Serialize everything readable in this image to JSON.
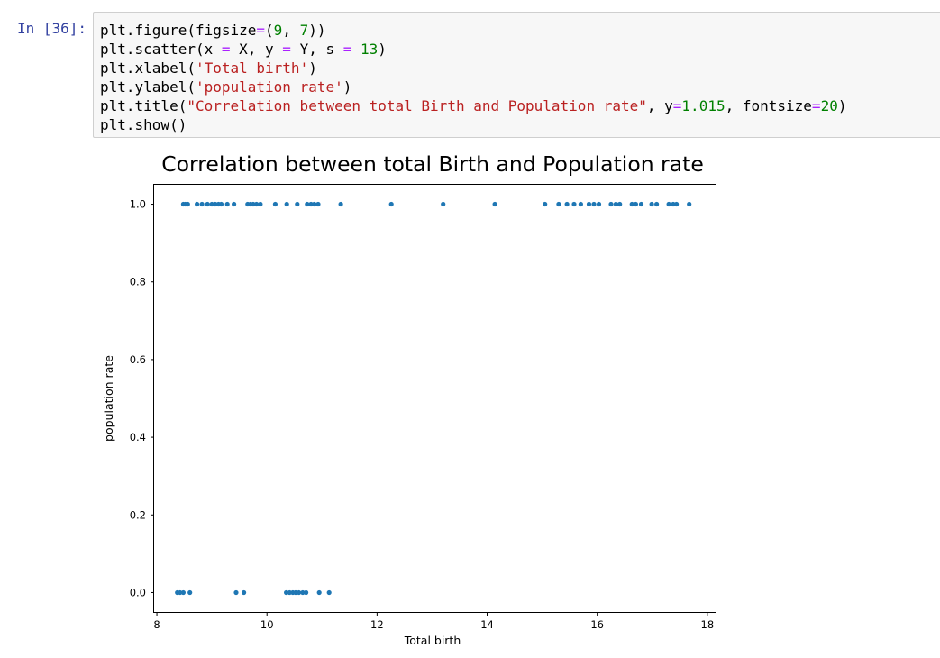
{
  "cell": {
    "prompt": "In [36]:",
    "lines": [
      [
        [
          "plt.figure(figsize",
          "n"
        ],
        [
          "=",
          "o"
        ],
        [
          "(",
          "n"
        ],
        [
          "9",
          "num"
        ],
        [
          ", ",
          "n"
        ],
        [
          "7",
          "num"
        ],
        [
          "))",
          "n"
        ]
      ],
      [
        [
          "plt.scatter(x ",
          "n"
        ],
        [
          "=",
          "o"
        ],
        [
          " X, y ",
          "n"
        ],
        [
          "=",
          "o"
        ],
        [
          " Y, s ",
          "n"
        ],
        [
          "=",
          "o"
        ],
        [
          " ",
          "n"
        ],
        [
          "13",
          "num"
        ],
        [
          ")",
          "n"
        ]
      ],
      [
        [
          "plt.xlabel(",
          "n"
        ],
        [
          "'Total birth'",
          "s"
        ],
        [
          ")",
          "n"
        ]
      ],
      [
        [
          "plt.ylabel(",
          "n"
        ],
        [
          "'population rate'",
          "s"
        ],
        [
          ")",
          "n"
        ]
      ],
      [
        [
          "plt.title(",
          "n"
        ],
        [
          "\"Correlation between total Birth and Population rate\"",
          "s"
        ],
        [
          ", y",
          "n"
        ],
        [
          "=",
          "o"
        ],
        [
          "1.015",
          "num"
        ],
        [
          ", fontsize",
          "n"
        ],
        [
          "=",
          "o"
        ],
        [
          "20",
          "num"
        ],
        [
          ")",
          "n"
        ]
      ],
      [
        [
          "plt.show()",
          "n"
        ]
      ]
    ]
  },
  "chart_data": {
    "type": "scatter",
    "title": "Correlation between total Birth and Population rate",
    "xlabel": "Total birth",
    "ylabel": "population rate",
    "xlim": [
      7.95,
      18.15
    ],
    "ylim": [
      -0.05,
      1.05
    ],
    "xticks": [
      8,
      10,
      12,
      14,
      16,
      18
    ],
    "yticks": [
      0.0,
      0.2,
      0.4,
      0.6,
      0.8,
      1.0
    ],
    "x_tick_labels": [
      "8",
      "10",
      "12",
      "14",
      "16",
      "18"
    ],
    "y_tick_labels": [
      "0.0",
      "0.2",
      "0.4",
      "0.6",
      "0.8",
      "1.0"
    ],
    "grid": false,
    "marker_color": "#1f77b4",
    "series": [
      {
        "points": [
          [
            8.48,
            1
          ],
          [
            8.52,
            1
          ],
          [
            8.56,
            1
          ],
          [
            8.73,
            1
          ],
          [
            8.82,
            1
          ],
          [
            8.92,
            1
          ],
          [
            9.0,
            1
          ],
          [
            9.06,
            1
          ],
          [
            9.12,
            1
          ],
          [
            9.17,
            1
          ],
          [
            9.28,
            1
          ],
          [
            9.4,
            1
          ],
          [
            9.65,
            1
          ],
          [
            9.7,
            1
          ],
          [
            9.75,
            1
          ],
          [
            9.81,
            1
          ],
          [
            9.88,
            1
          ],
          [
            10.15,
            1
          ],
          [
            10.36,
            1
          ],
          [
            10.55,
            1
          ],
          [
            10.73,
            1
          ],
          [
            10.8,
            1
          ],
          [
            10.86,
            1
          ],
          [
            10.93,
            1
          ],
          [
            11.34,
            1
          ],
          [
            12.26,
            1
          ],
          [
            13.2,
            1
          ],
          [
            14.14,
            1
          ],
          [
            15.05,
            1
          ],
          [
            15.3,
            1
          ],
          [
            15.45,
            1
          ],
          [
            15.58,
            1
          ],
          [
            15.7,
            1
          ],
          [
            15.85,
            1
          ],
          [
            15.94,
            1
          ],
          [
            16.03,
            1
          ],
          [
            16.25,
            1
          ],
          [
            16.34,
            1
          ],
          [
            16.41,
            1
          ],
          [
            16.63,
            1
          ],
          [
            16.7,
            1
          ],
          [
            16.8,
            1
          ],
          [
            16.99,
            1
          ],
          [
            17.08,
            1
          ],
          [
            17.3,
            1
          ],
          [
            17.38,
            1
          ],
          [
            17.44,
            1
          ],
          [
            17.67,
            1
          ],
          [
            8.37,
            0
          ],
          [
            8.42,
            0
          ],
          [
            8.48,
            0
          ],
          [
            8.6,
            0
          ],
          [
            9.44,
            0
          ],
          [
            9.58,
            0
          ],
          [
            10.35,
            0
          ],
          [
            10.41,
            0
          ],
          [
            10.47,
            0
          ],
          [
            10.52,
            0
          ],
          [
            10.58,
            0
          ],
          [
            10.65,
            0
          ],
          [
            10.71,
            0
          ],
          [
            10.95,
            0
          ],
          [
            11.13,
            0
          ]
        ]
      }
    ]
  }
}
